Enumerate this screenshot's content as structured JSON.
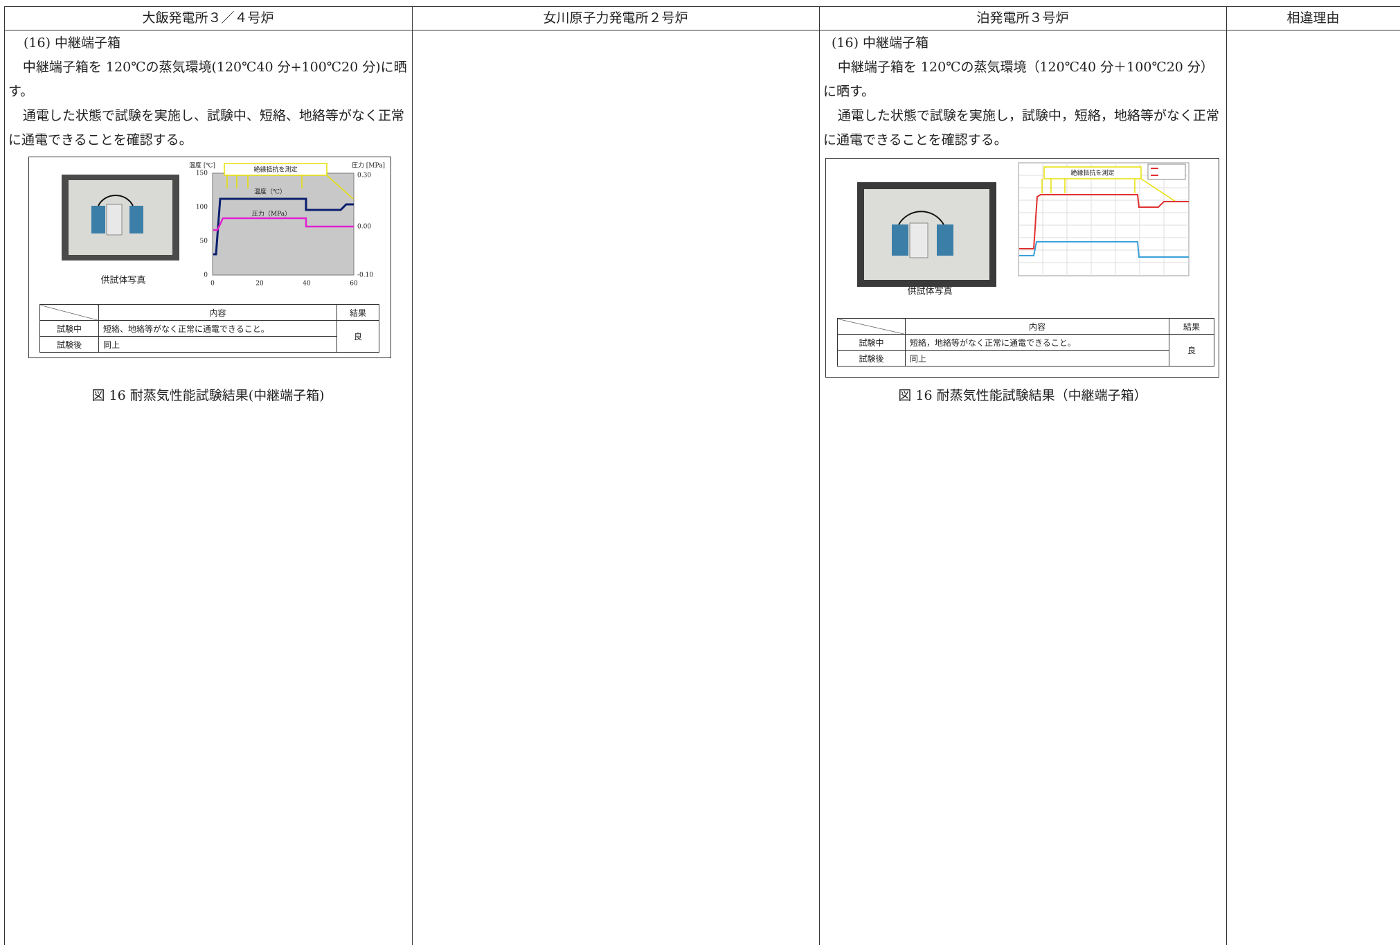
{
  "header": [
    "大飯発電所３／４号炉",
    "女川原子力発電所２号炉",
    "泊発電所３号炉",
    "相違理由"
  ],
  "ohi": {
    "heading": "(16) 中継端子箱",
    "paragraphs": [
      "中継端子箱を 120℃の蒸気環境(120℃40 分+100℃20 分)に晒す。",
      "通電した状態で試験を実施し、試験中、短絡、地絡等がなく正常に通電できることを確認する。"
    ],
    "figure": {
      "photo_caption": "供試体写真",
      "chart": {
        "measure_label": "絶縁抵抗を測定",
        "left_axis_label": "温度 [℃]",
        "right_axis_label": "圧力 [MPa]",
        "temp_label": "温度（℃）",
        "pressure_label": "圧力（MPa）",
        "left_ticks": [
          "150",
          "100",
          "50",
          "0"
        ],
        "right_ticks": [
          "0.30",
          "0.00",
          "-0.10"
        ],
        "x_ticks": [
          "0",
          "20",
          "40",
          "60"
        ]
      },
      "table": {
        "header": [
          "内容",
          "結果"
        ],
        "rows": [
          [
            "試験中",
            "短絡、地絡等がなく正常に通電できること。"
          ],
          [
            "試験後",
            "同上"
          ]
        ],
        "result": "良"
      }
    },
    "caption": "図 16 耐蒸気性能試験結果(中継端子箱)"
  },
  "tomari": {
    "heading": "(16) 中継端子箱",
    "paragraphs": [
      "中継端子箱を 120℃の蒸気環境（120℃40 分＋100℃20 分）に晒す。",
      "通電した状態で試験を実施し，試験中，短絡，地絡等がなく正常に通電できることを確認する。"
    ],
    "figure": {
      "photo_caption": "供試体写真",
      "chart": {
        "measure_label": "絶縁抵抗を測定"
      },
      "table": {
        "header": [
          "内容",
          "結果"
        ],
        "rows": [
          [
            "試験中",
            "短絡，地絡等がなく正常に通電できること。"
          ],
          [
            "試験後",
            "同上"
          ]
        ],
        "result": "良"
      }
    },
    "caption": "図 16 耐蒸気性能試験結果（中継端子箱）"
  }
}
